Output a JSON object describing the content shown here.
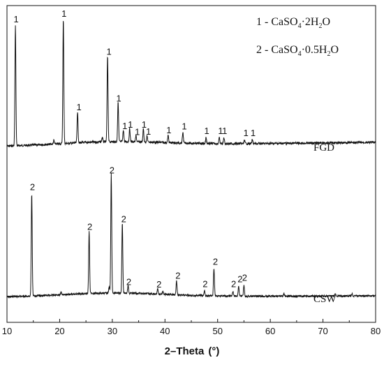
{
  "chart_data": {
    "type": "line",
    "xlabel_main": "2–Theta",
    "xlabel_unit": "(°)",
    "xlim": [
      10,
      80
    ],
    "x_ticks": [
      10,
      20,
      30,
      40,
      50,
      60,
      70,
      80
    ],
    "legend": [
      {
        "key": "1",
        "formula": [
          "CaSO",
          "4",
          "·2H",
          "2",
          "O"
        ]
      },
      {
        "key": "2",
        "formula": [
          "CaSO",
          "4",
          "·0.5H",
          "2",
          "O"
        ]
      }
    ],
    "series": [
      {
        "name": "FGD",
        "baseline": 0,
        "peaks": [
          {
            "x": 11.6,
            "h": 100,
            "label": "1"
          },
          {
            "x": 18.9,
            "h": 3,
            "label": ""
          },
          {
            "x": 20.7,
            "h": 104,
            "label": "1"
          },
          {
            "x": 23.4,
            "h": 26,
            "label": "1"
          },
          {
            "x": 28.1,
            "h": 4,
            "label": ""
          },
          {
            "x": 29.1,
            "h": 72,
            "label": "1"
          },
          {
            "x": 31.1,
            "h": 33,
            "label": "1"
          },
          {
            "x": 32.1,
            "h": 10,
            "label": "1"
          },
          {
            "x": 33.3,
            "h": 11,
            "label": "1"
          },
          {
            "x": 34.5,
            "h": 5,
            "label": "1"
          },
          {
            "x": 35.9,
            "h": 11,
            "label": "1"
          },
          {
            "x": 36.6,
            "h": 5,
            "label": "1"
          },
          {
            "x": 40.6,
            "h": 6,
            "label": "1"
          },
          {
            "x": 43.4,
            "h": 9,
            "label": "1"
          },
          {
            "x": 47.8,
            "h": 5,
            "label": "1"
          },
          {
            "x": 50.3,
            "h": 5,
            "label": "1"
          },
          {
            "x": 51.2,
            "h": 5,
            "label": "1"
          },
          {
            "x": 55.1,
            "h": 3,
            "label": "1"
          },
          {
            "x": 56.6,
            "h": 3,
            "label": "1"
          }
        ]
      },
      {
        "name": "CSW",
        "baseline": 0,
        "peaks": [
          {
            "x": 14.7,
            "h": 82,
            "label": "2"
          },
          {
            "x": 20.3,
            "h": 2,
            "label": ""
          },
          {
            "x": 25.6,
            "h": 50,
            "label": "2"
          },
          {
            "x": 29.4,
            "h": 5,
            "label": ""
          },
          {
            "x": 29.8,
            "h": 95,
            "label": "2"
          },
          {
            "x": 31.9,
            "h": 56,
            "label": "2"
          },
          {
            "x": 33.0,
            "h": 6,
            "label": "2"
          },
          {
            "x": 38.6,
            "h": 4,
            "label": "2"
          },
          {
            "x": 39.6,
            "h": 2,
            "label": ""
          },
          {
            "x": 42.2,
            "h": 11,
            "label": "2"
          },
          {
            "x": 47.5,
            "h": 4,
            "label": "2"
          },
          {
            "x": 49.3,
            "h": 22,
            "label": "2"
          },
          {
            "x": 52.9,
            "h": 4,
            "label": "2"
          },
          {
            "x": 54.0,
            "h": 8,
            "label": "2"
          },
          {
            "x": 55.0,
            "h": 9,
            "label": "2"
          },
          {
            "x": 62.6,
            "h": 2,
            "label": ""
          },
          {
            "x": 72.3,
            "h": 2,
            "label": ""
          },
          {
            "x": 75.5,
            "h": 2,
            "label": ""
          }
        ]
      }
    ]
  }
}
